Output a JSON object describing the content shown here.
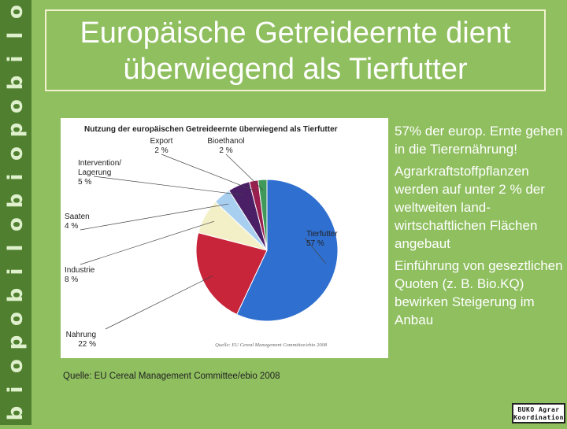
{
  "slide": {
    "title_line1": "Europäische Getreideernte dient",
    "title_line2": "überwiegend als Tierfutter",
    "source_note": "Quelle: EU Cereal Management Committee/ebio 2008",
    "bullets": [
      "57% der europ. Ernte gehen in die Tierernährung!",
      "Agrarkraftstoffpflanzen werden auf unter 2 % der weltweiten land-wirtschaftlichen Flächen angebaut",
      "Einführung von geseztlichen Quoten (z. B. Bio.KQ) bewirken Steigerung im Anbau"
    ],
    "side_letters": [
      "o",
      "l",
      "i",
      "b",
      "o",
      "p",
      "o",
      "i",
      "b",
      "o",
      "l",
      "i",
      "b",
      "o",
      "p",
      "o",
      "i",
      "b"
    ],
    "logo_line1": "BUKO Agrar",
    "logo_line2": "Koordination"
  },
  "colors": {
    "background": "#8fbf5f",
    "side_strip": "#4f7f2f"
  },
  "chart_data": {
    "type": "pie",
    "title": "Nutzung der europäischen Getreideernte überwiegend als Tierfutter",
    "watermark": "Quelle: EU Cereal Management Committee/ebio 2008",
    "slices": [
      {
        "label": "Tierfutter",
        "value_label": "57 %",
        "value": 57,
        "color": "#2f6fcf"
      },
      {
        "label": "Nahrung",
        "value_label": "22 %",
        "value": 22,
        "color": "#c8243a"
      },
      {
        "label": "Industrie",
        "value_label": "8 %",
        "value": 8,
        "color": "#f3f0c8"
      },
      {
        "label": "Saaten",
        "value_label": "4 %",
        "value": 4,
        "color": "#a9cff0"
      },
      {
        "label": "Intervention/ Lagerung",
        "value_label": "5 %",
        "value": 5,
        "color": "#4a1f66"
      },
      {
        "label": "Export",
        "value_label": "2 %",
        "value": 2,
        "color": "#9a1f4f"
      },
      {
        "label": "Bioethanol",
        "value_label": "2 %",
        "value": 2,
        "color": "#3f9a5a"
      }
    ]
  }
}
